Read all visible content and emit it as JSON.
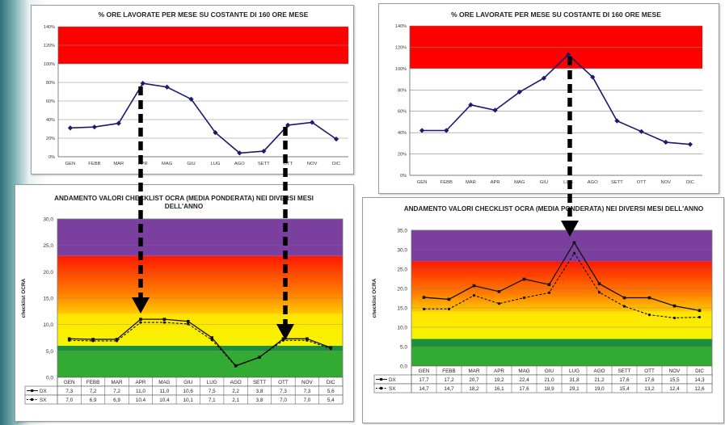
{
  "chart_data": [
    {
      "type": "line",
      "title": "% ORE LAVORATE PER MESE SU COSTANTE DI 160 ORE MESE",
      "categories": [
        "GEN",
        "FEBB",
        "MAR",
        "APR",
        "MAG",
        "GIU",
        "LUG",
        "AGO",
        "SETT",
        "OTT",
        "NOV",
        "DIC"
      ],
      "ytick_labels": [
        "0%",
        "20%",
        "40%",
        "60%",
        "80%",
        "100%",
        "120%",
        "140%"
      ],
      "ylim": [
        0,
        1.4
      ],
      "series": [
        {
          "values": [
            0.31,
            0.32,
            0.36,
            0.79,
            0.75,
            0.62,
            0.26,
            0.04,
            0.06,
            0.34,
            0.37,
            0.19
          ]
        }
      ],
      "band": {
        "from": 1.0,
        "to": 1.4,
        "color": "#ff0000"
      },
      "grid": true
    },
    {
      "type": "line",
      "title_lines": [
        "ANDAMENTO VALORI CHECKLIST OCRA (MEDIA PONDERATA) NEI DIVERSI MESI",
        "DELL'ANNO"
      ],
      "ylabel": "checklist OCRA",
      "categories": [
        "GEN",
        "FEBB",
        "MAR",
        "APR",
        "MAG",
        "GIU",
        "LUG",
        "AGO",
        "SETT",
        "OTT",
        "NOV",
        "DIC"
      ],
      "ytick_labels": [
        "0,0",
        "5,0",
        "10,0",
        "15,0",
        "20,0",
        "25,0",
        "30,0"
      ],
      "ylim": [
        0,
        30
      ],
      "series": [
        {
          "name": "DX",
          "values": [
            7.3,
            7.2,
            7.2,
            11.0,
            11.0,
            10.6,
            7.5,
            2.2,
            3.8,
            7.3,
            7.3,
            5.6
          ],
          "labels": [
            "7,3",
            "7,2",
            "7,2",
            "11,0",
            "11,0",
            "10,6",
            "7,5",
            "2,2",
            "3,8",
            "7,3",
            "7,3",
            "5,6"
          ]
        },
        {
          "name": "SX",
          "values": [
            7.0,
            6.9,
            6.9,
            10.4,
            10.4,
            10.1,
            7.1,
            2.1,
            3.8,
            7.0,
            7.0,
            5.4
          ],
          "labels": [
            "7,0",
            "6,9",
            "6,9",
            "10,4",
            "10,4",
            "10,1",
            "7,1",
            "2,1",
            "3,8",
            "7,0",
            "7,0",
            "5,4"
          ]
        }
      ],
      "bands": [
        {
          "from": 0,
          "to": 5,
          "color": "#33aa33"
        },
        {
          "from": 5,
          "to": 6,
          "color": "#1b8f3a"
        },
        {
          "from": 6,
          "to": 12,
          "color": "yellow"
        },
        {
          "from": 12,
          "to": 23,
          "color": "red-orange"
        },
        {
          "from": 23,
          "to": 30,
          "color": "#7b3fa0"
        }
      ]
    },
    {
      "type": "line",
      "title": "% ORE LAVORATE PER MESE SU COSTANTE DI 160 ORE MESE",
      "categories": [
        "GEN",
        "FEBB",
        "MAR",
        "APR",
        "MAG",
        "GIU",
        "LUG",
        "AGO",
        "SETT",
        "OTT",
        "NOV",
        "DIC"
      ],
      "ytick_labels": [
        "0%",
        "20%",
        "40%",
        "60%",
        "80%",
        "100%",
        "120%",
        "140%"
      ],
      "ylim": [
        0,
        1.4
      ],
      "series": [
        {
          "values": [
            0.42,
            0.42,
            0.66,
            0.61,
            0.78,
            0.91,
            1.13,
            0.92,
            0.51,
            0.41,
            0.31,
            0.29
          ]
        }
      ],
      "band": {
        "from": 1.0,
        "to": 1.4,
        "color": "#ff0000"
      },
      "grid": true
    },
    {
      "type": "line",
      "title": "ANDAMENTO VALORI CHECKLIST OCRA (MEDIA PONDERATA) NEI DIVERSI MESI DELL'ANNO",
      "ylabel": "checklist OCRA",
      "categories": [
        "GEN",
        "FEBB",
        "MAR",
        "APR",
        "MAG",
        "GIU",
        "LUG",
        "AGO",
        "SETT",
        "OTT",
        "NOV",
        "DIC"
      ],
      "ytick_labels": [
        "0,0",
        "5,0",
        "10,0",
        "15,0",
        "20,0",
        "25,0",
        "30,0",
        "35,0"
      ],
      "ylim": [
        0,
        35
      ],
      "series": [
        {
          "name": "DX",
          "values": [
            17.7,
            17.2,
            20.7,
            19.2,
            22.4,
            21.0,
            31.8,
            21.2,
            17.6,
            17.6,
            15.5,
            14.3
          ],
          "labels": [
            "17,7",
            "17,2",
            "20,7",
            "19,2",
            "22,4",
            "21,0",
            "31,8",
            "21,2",
            "17,6",
            "17,6",
            "15,5",
            "14,3"
          ]
        },
        {
          "name": "SX",
          "values": [
            14.7,
            14.7,
            18.2,
            16.1,
            17.6,
            18.9,
            29.1,
            19.0,
            15.4,
            13.2,
            12.4,
            12.6
          ],
          "labels": [
            "14,7",
            "14,7",
            "18,2",
            "16,1",
            "17,6",
            "18,9",
            "29,1",
            "19,0",
            "15,4",
            "13,2",
            "12,4",
            "12,6"
          ]
        }
      ],
      "bands": [
        {
          "from": 0,
          "to": 5,
          "color": "#33aa33"
        },
        {
          "from": 5,
          "to": 7,
          "color": "#1b8f3a"
        },
        {
          "from": 7,
          "to": 14,
          "color": "yellow"
        },
        {
          "from": 14,
          "to": 27,
          "color": "red-orange"
        },
        {
          "from": 27,
          "to": 35,
          "color": "#7b3fa0"
        }
      ]
    }
  ]
}
